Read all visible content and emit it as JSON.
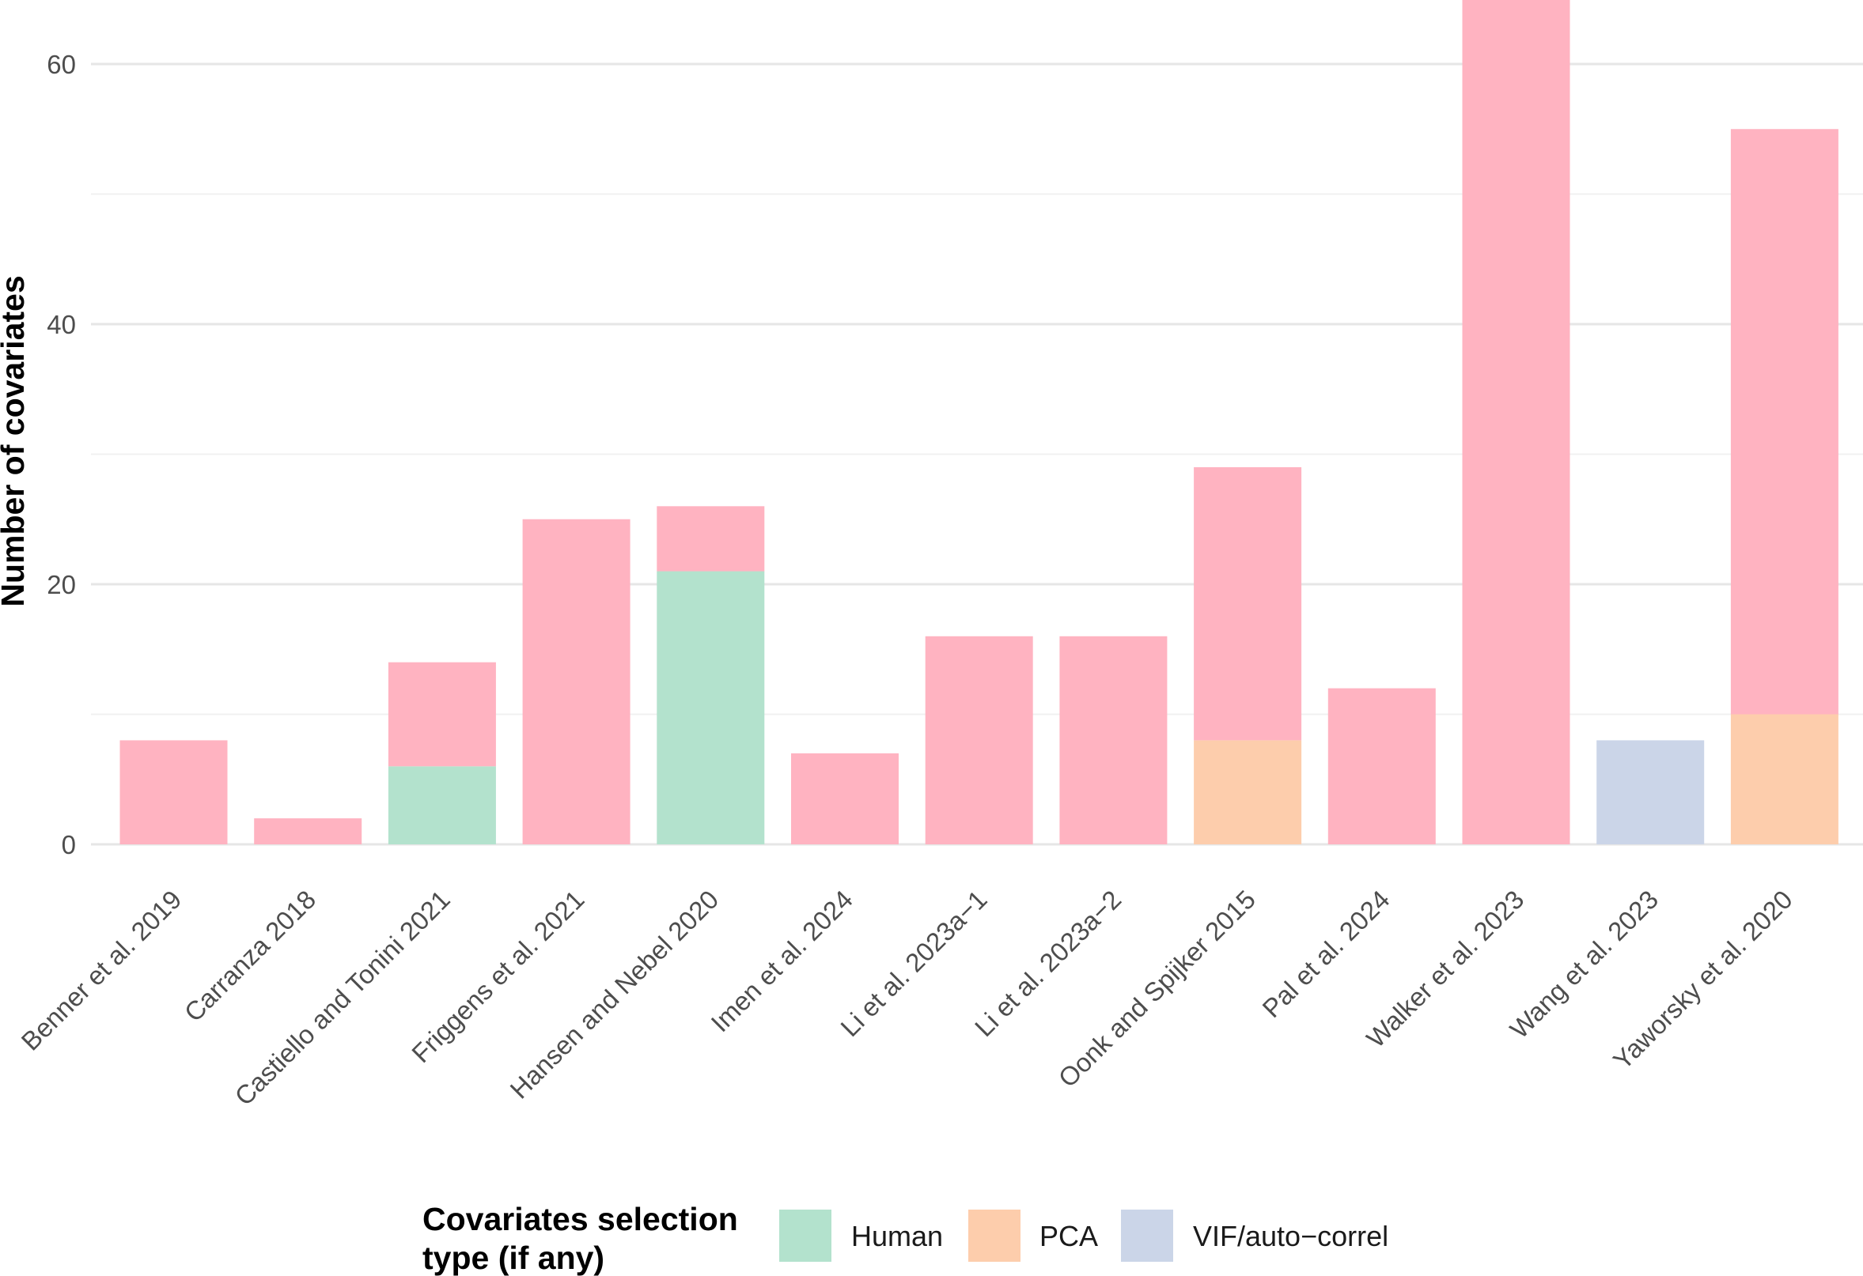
{
  "chart_data": {
    "type": "bar",
    "stacked": true,
    "title": "",
    "xlabel": "",
    "ylabel": "Number of covariates",
    "ylim": [
      0,
      65
    ],
    "yticks": [
      0,
      20,
      40,
      60
    ],
    "grid": true,
    "legend_position": "bottom",
    "legend_title": "Covariates selection type (if any)",
    "categories": [
      "Benner et al. 2019",
      "Carranza 2018",
      "Castiello and Tonini 2021",
      "Friggens et al. 2021",
      "Hansen and Nebel 2020",
      "Imen et al. 2024",
      "Li et al. 2023a−1",
      "Li et al. 2023a−2",
      "Oonk and Spijker 2015",
      "Pal et al. 2024",
      "Walker et al. 2023",
      "Wang et al. 2023",
      "Yaworsky et al. 2020"
    ],
    "series": [
      {
        "name": "Human",
        "color": "#b3e2cd",
        "values": [
          0,
          0,
          6,
          0,
          21,
          0,
          0,
          0,
          0,
          0,
          0,
          0,
          0
        ]
      },
      {
        "name": "PCA",
        "color": "#fdcdac",
        "values": [
          0,
          0,
          0,
          0,
          0,
          0,
          0,
          0,
          8,
          0,
          0,
          0,
          10
        ]
      },
      {
        "name": "VIF/auto−correl",
        "color": "#cbd5e8",
        "values": [
          0,
          0,
          0,
          0,
          0,
          0,
          0,
          0,
          0,
          0,
          0,
          8,
          0
        ]
      },
      {
        "name": "",
        "color": "#ffb3c1",
        "values": [
          8,
          2,
          8,
          25,
          5,
          7,
          16,
          16,
          21,
          12,
          65,
          0,
          45
        ]
      }
    ],
    "legend_series": [
      "Human",
      "PCA",
      "VIF/auto−correl"
    ]
  }
}
